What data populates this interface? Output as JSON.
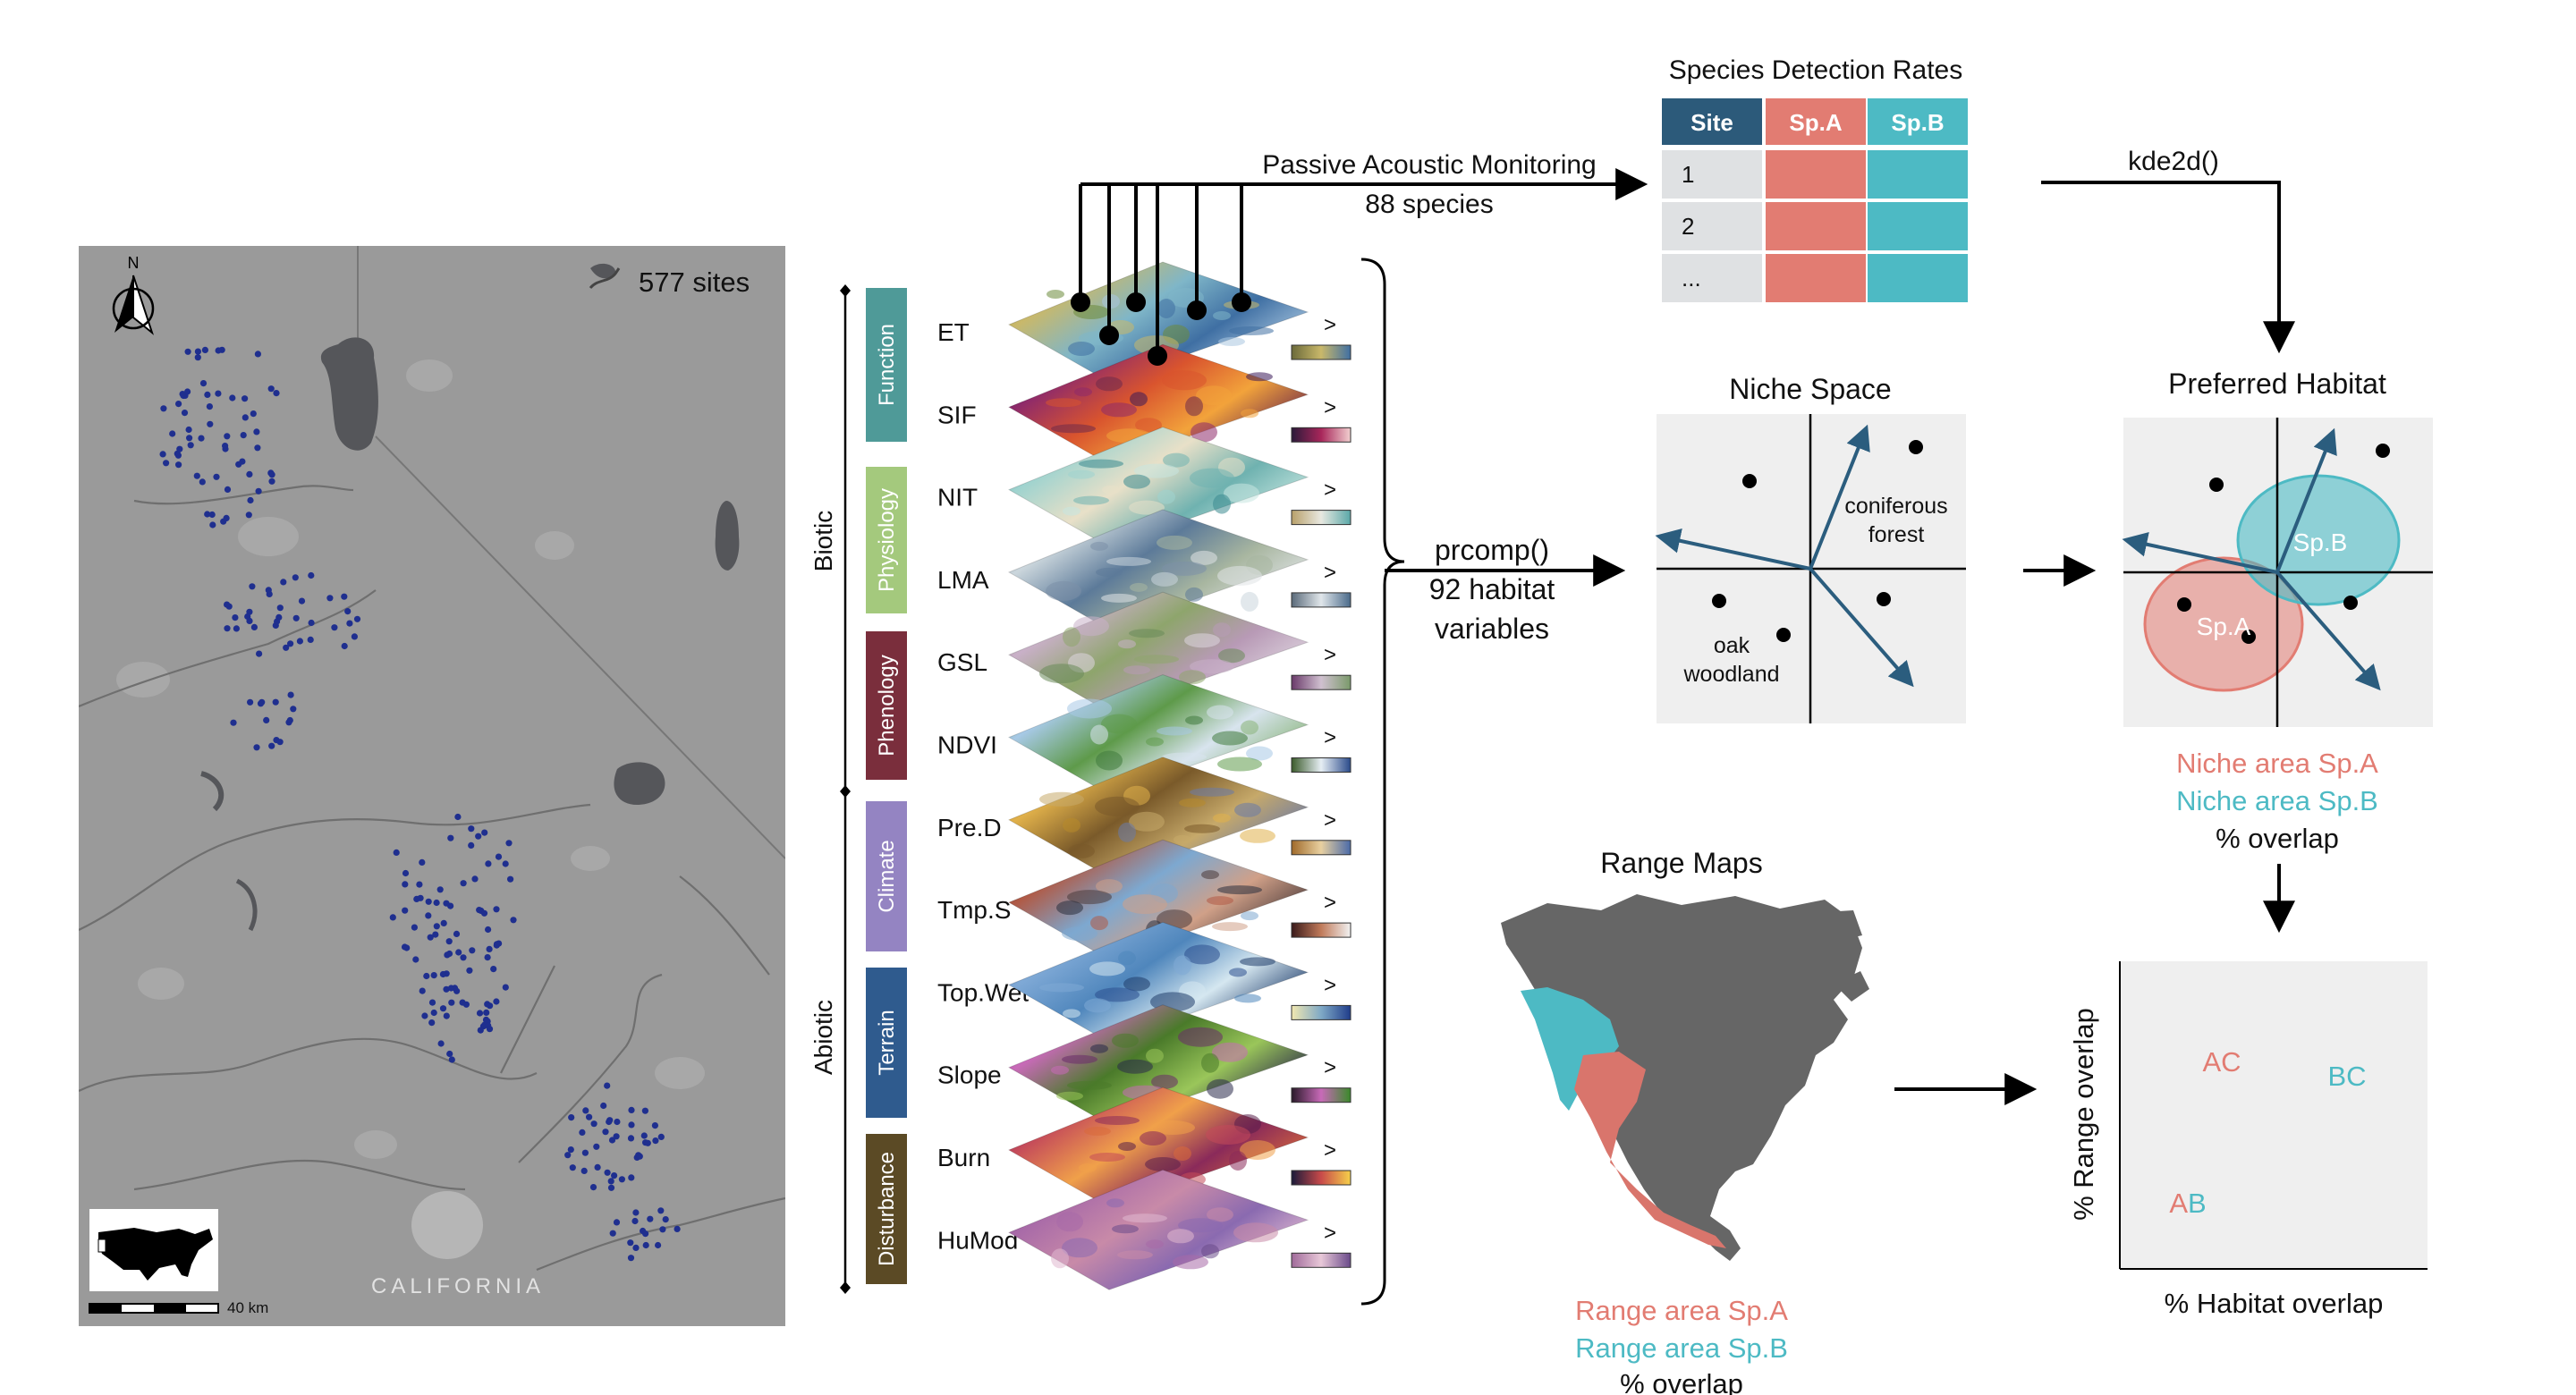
{
  "map": {
    "sites_label": "577 sites",
    "north_label": "N",
    "region_label": "CALIFORNIA",
    "scale_label": "40 km"
  },
  "layers": {
    "group_labels": [
      "Biotic",
      "Abiotic"
    ],
    "categories": [
      "Function",
      "Physiology",
      "Phenology",
      "Climate",
      "Terrain",
      "Disturbance"
    ],
    "category_colors": [
      "#4f9a98",
      "#a4c97d",
      "#7a2e3c",
      "#9484c2",
      "#2f5b8e",
      "#5b4a25"
    ],
    "names": [
      "ET",
      "SIF",
      "NIT",
      "LMA",
      "GSL",
      "NDVI",
      "Pre.D",
      "Tmp.S",
      "Top.Wet",
      "Slope",
      "Burn",
      "HuMod"
    ],
    "caret": ">"
  },
  "pam": {
    "title": "Passive Acoustic Monitoring",
    "subtitle": "88 species"
  },
  "table": {
    "title": "Species Detection Rates",
    "headers": [
      "Site",
      "Sp.A",
      "Sp.B"
    ],
    "rows": [
      "1",
      "2",
      "..."
    ],
    "header_colors": [
      "#2c5a7a",
      "#e27c72",
      "#4dbac4"
    ]
  },
  "kde_label": "kde2d()",
  "prcomp": {
    "line1": "prcomp()",
    "line2": "92 habitat",
    "line3": "variables"
  },
  "niche": {
    "title": "Niche Space",
    "label1a": "coniferous",
    "label1b": "forest",
    "label2a": "oak",
    "label2b": "woodland"
  },
  "habitat": {
    "title": "Preferred Habitat",
    "spA": "Sp.A",
    "spB": "Sp.B",
    "legend_a": "Niche area Sp.A",
    "legend_b": "Niche area Sp.B",
    "legend_overlap": "% overlap"
  },
  "range": {
    "title": "Range Maps",
    "legend_a": "Range area Sp.A",
    "legend_b": "Range area Sp.B",
    "legend_overlap": "% overlap"
  },
  "overlap_plot": {
    "xlabel": "% Habitat overlap",
    "ylabel": "% Range overlap",
    "pair_ac": [
      "A",
      "C"
    ],
    "pair_bc": [
      "B",
      "C"
    ],
    "pair_ab": [
      "A",
      "B"
    ]
  },
  "colors": {
    "spA": "#e27c72",
    "spB": "#4dbac4",
    "arrow": "#2b5d7e",
    "map_bg": "#9a9a9a",
    "lake": "#55565a",
    "site_dot": "#1f2f8f"
  }
}
